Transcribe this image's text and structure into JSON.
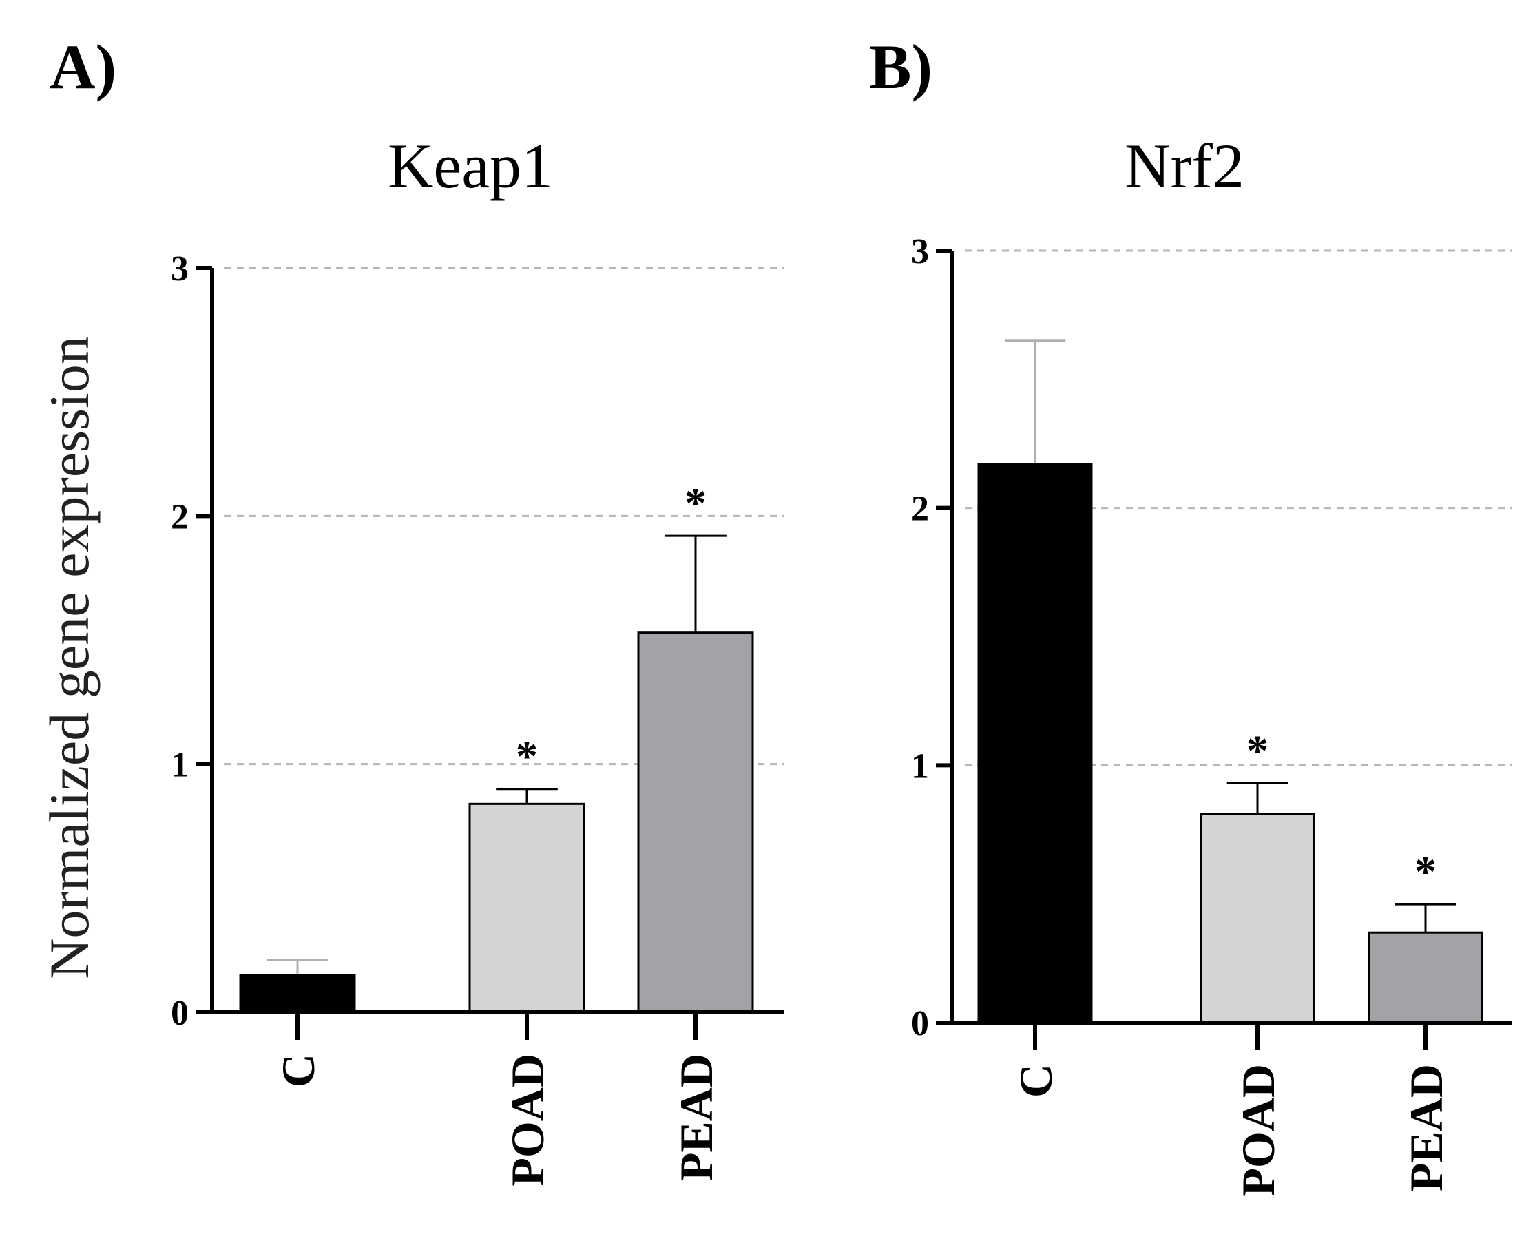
{
  "chart_data": [
    {
      "type": "bar",
      "panel_label": "A)",
      "title": "Keap1",
      "ylabel": "Normalized gene expression",
      "xlabel": "",
      "categories": [
        "C",
        "POAD",
        "PEAD"
      ],
      "values": [
        0.15,
        0.84,
        1.53
      ],
      "errors": [
        0.06,
        0.06,
        0.39
      ],
      "significance": [
        "",
        "*",
        "*"
      ],
      "bar_colors": [
        "#000000",
        "#d4d4d4",
        "#a3a2a6"
      ],
      "error_colors": [
        "#b0b0b0",
        "#000000",
        "#000000"
      ],
      "yticks": [
        "0",
        "1",
        "2",
        "3"
      ],
      "ylim": [
        0,
        3
      ],
      "grid": true
    },
    {
      "type": "bar",
      "panel_label": "B)",
      "title": "Nrf2",
      "ylabel": "",
      "xlabel": "",
      "categories": [
        "C",
        "POAD",
        "PEAD"
      ],
      "values": [
        2.17,
        0.81,
        0.35
      ],
      "errors": [
        0.48,
        0.12,
        0.11
      ],
      "significance": [
        "",
        "*",
        "*"
      ],
      "bar_colors": [
        "#000000",
        "#d4d4d4",
        "#a3a2a6"
      ],
      "error_colors": [
        "#b0b0b0",
        "#000000",
        "#000000"
      ],
      "yticks": [
        "0",
        "1",
        "2",
        "3"
      ],
      "ylim": [
        0,
        3
      ],
      "grid": true
    }
  ]
}
